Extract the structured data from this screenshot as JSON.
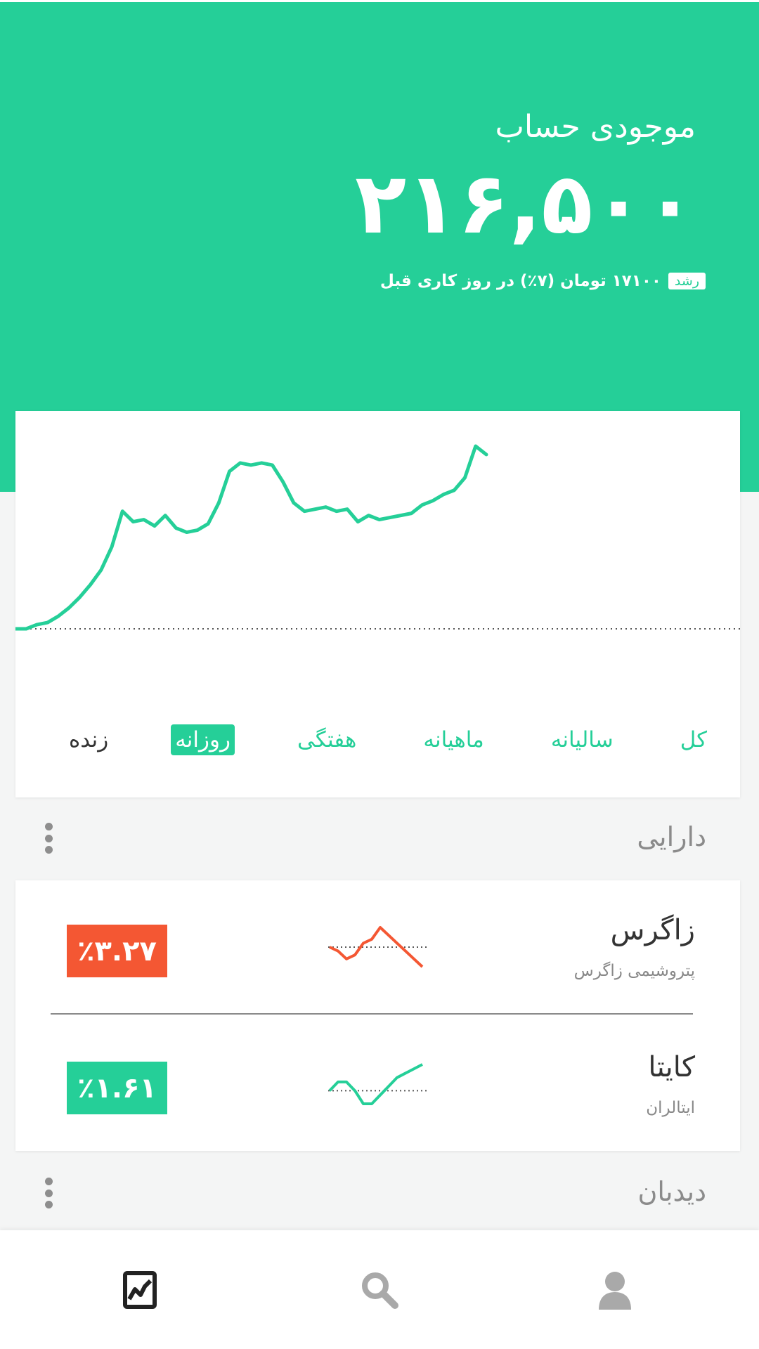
{
  "header": {
    "title": "موجودی حساب",
    "balance": "۲۱۶,۵۰۰",
    "growth_badge": "رشد",
    "growth_text": "۱۷۱۰۰ تومان (۷٪) در روز کاری قبل"
  },
  "chart_data": {
    "type": "line",
    "x": [
      0,
      1,
      2,
      3,
      4,
      5,
      6,
      7,
      8,
      9,
      10,
      11,
      12,
      13,
      14,
      15,
      16,
      17,
      18,
      19,
      20,
      21,
      22,
      23,
      24,
      25,
      26,
      27,
      28,
      29,
      30,
      31,
      32,
      33,
      34,
      35,
      36,
      37,
      38,
      39,
      40,
      41,
      42,
      43,
      44
    ],
    "y": [
      0,
      0,
      4,
      6,
      12,
      20,
      30,
      42,
      56,
      78,
      112,
      102,
      104,
      98,
      108,
      96,
      92,
      94,
      100,
      120,
      150,
      158,
      156,
      158,
      156,
      140,
      120,
      112,
      114,
      116,
      112,
      114,
      102,
      108,
      104,
      106,
      108,
      110,
      118,
      122,
      128,
      132,
      144,
      174,
      166
    ],
    "baseline": 0,
    "colors": {
      "line": "#25cf98",
      "baseline": "#555555"
    }
  },
  "tabs": [
    {
      "label": "زنده",
      "state": "live"
    },
    {
      "label": "روزانه",
      "state": "active"
    },
    {
      "label": "هفتگی",
      "state": "normal"
    },
    {
      "label": "ماهیانه",
      "state": "normal"
    },
    {
      "label": "سالیانه",
      "state": "normal"
    },
    {
      "label": "کل",
      "state": "normal"
    }
  ],
  "assets_section": {
    "title": "دارایی",
    "more_icon": "more-vertical-icon"
  },
  "assets": [
    {
      "name": "زاگرس",
      "company": "پتروشیمی زاگرس",
      "change": "٪۳.۲۷",
      "direction": "down",
      "color": "#f45733",
      "spark": [
        2,
        1,
        -1,
        0,
        3,
        4,
        7,
        5,
        3,
        1,
        -1,
        -3
      ]
    },
    {
      "name": "کایتا",
      "company": "ایتالران",
      "change": "٪۱.۶۱",
      "direction": "up",
      "color": "#25cf98",
      "spark": [
        0,
        2,
        2,
        0,
        -3,
        -3,
        -1,
        1,
        3,
        4,
        5,
        6
      ]
    }
  ],
  "watchlist_section": {
    "title": "دیدبان",
    "more_icon": "more-vertical-icon"
  },
  "bottom_nav": [
    {
      "name": "portfolio-chart-icon",
      "active": true
    },
    {
      "name": "search-icon",
      "active": false
    },
    {
      "name": "user-profile-icon",
      "active": false
    }
  ]
}
